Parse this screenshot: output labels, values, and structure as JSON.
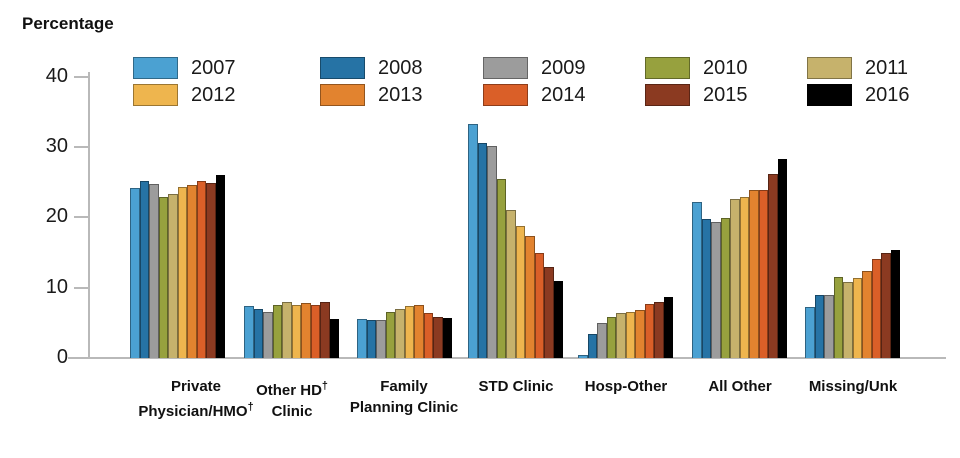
{
  "chart_data": {
    "type": "bar",
    "title": "Percentage",
    "xlabel": "",
    "ylabel": "Percentage",
    "ylim": [
      0,
      40
    ],
    "yticks": [
      0,
      10,
      20,
      30,
      40
    ],
    "grid": false,
    "legend_position": "top",
    "categories": [
      "Private Physician/HMO†",
      "Other HD† Clinic",
      "Family Planning Clinic",
      "STD Clinic",
      "Hosp-Other",
      "All Other",
      "Missing/Unk"
    ],
    "category_label_lines": [
      [
        "Private",
        "Physician/HMO†"
      ],
      [
        "Other HD†",
        "Clinic"
      ],
      [
        "Family",
        "Planning Clinic"
      ],
      [
        "STD Clinic"
      ],
      [
        "Hosp-Other"
      ],
      [
        "All Other"
      ],
      [
        "Missing/Unk"
      ]
    ],
    "series": [
      {
        "name": "2007",
        "color": "#4BA1D2",
        "values": [
          24.1,
          7.4,
          5.6,
          33.2,
          0.4,
          22.2,
          7.3
        ]
      },
      {
        "name": "2008",
        "color": "#2673A5",
        "values": [
          25.2,
          6.9,
          5.4,
          30.5,
          3.4,
          19.7,
          9.0
        ]
      },
      {
        "name": "2009",
        "color": "#9C9C9C",
        "values": [
          24.7,
          6.6,
          5.4,
          30.2,
          5.0,
          19.3,
          9.0
        ]
      },
      {
        "name": "2010",
        "color": "#97A13E",
        "values": [
          22.9,
          7.5,
          6.5,
          25.4,
          5.8,
          19.9,
          11.5
        ]
      },
      {
        "name": "2011",
        "color": "#C6B26C",
        "values": [
          23.3,
          7.9,
          7.0,
          21.0,
          6.4,
          22.6,
          10.8
        ]
      },
      {
        "name": "2012",
        "color": "#EEB54E",
        "values": [
          24.3,
          7.5,
          7.4,
          18.8,
          6.6,
          22.9,
          11.4
        ]
      },
      {
        "name": "2013",
        "color": "#E2832F",
        "values": [
          24.6,
          7.8,
          7.5,
          17.3,
          6.8,
          23.9,
          12.4
        ]
      },
      {
        "name": "2014",
        "color": "#DA5F28",
        "values": [
          25.2,
          7.5,
          6.4,
          14.9,
          7.7,
          23.9,
          14.1
        ]
      },
      {
        "name": "2015",
        "color": "#8B3A21",
        "values": [
          24.9,
          8.0,
          5.9,
          13.0,
          8.0,
          26.1,
          14.9
        ]
      },
      {
        "name": "2016",
        "color": "#000000",
        "values": [
          26.0,
          5.5,
          5.7,
          11.0,
          8.7,
          28.3,
          15.4
        ]
      }
    ],
    "legend_rows": [
      [
        "2007",
        "2008",
        "2009",
        "2010",
        "2011"
      ],
      [
        "2012",
        "2013",
        "2014",
        "2015",
        "2016"
      ]
    ]
  }
}
